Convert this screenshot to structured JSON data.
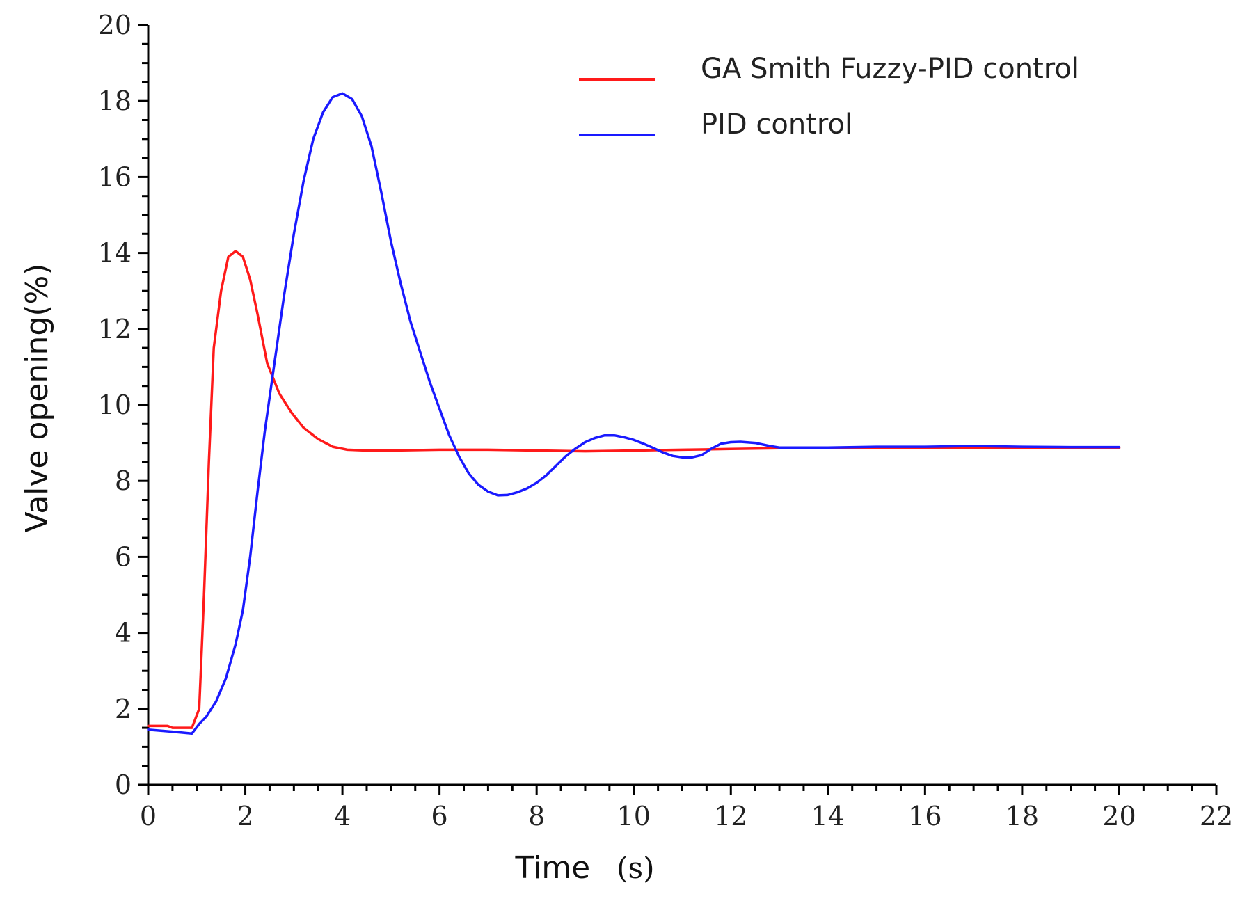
{
  "chart_data": {
    "type": "line",
    "title": "",
    "xlabel": "Time",
    "xlabel_unit": "(s)",
    "ylabel": "Valve opening(%)",
    "xlim": [
      0,
      22
    ],
    "ylim": [
      0,
      20
    ],
    "x_ticks": [
      0,
      2,
      4,
      6,
      8,
      10,
      12,
      14,
      16,
      18,
      20,
      22
    ],
    "y_ticks": [
      0,
      2,
      4,
      6,
      8,
      10,
      12,
      14,
      16,
      18,
      20
    ],
    "x_minor_step": 0.5,
    "y_minor_step": 0.5,
    "grid": false,
    "legend_position": "top-right",
    "series": [
      {
        "name": "GA Smith Fuzzy-PID control",
        "color": "#ff1a1a",
        "points": [
          [
            0,
            1.55
          ],
          [
            0.4,
            1.55
          ],
          [
            0.5,
            1.5
          ],
          [
            0.9,
            1.5
          ],
          [
            1.05,
            2.0
          ],
          [
            1.15,
            5.0
          ],
          [
            1.25,
            8.5
          ],
          [
            1.35,
            11.5
          ],
          [
            1.5,
            13.0
          ],
          [
            1.65,
            13.9
          ],
          [
            1.8,
            14.05
          ],
          [
            1.95,
            13.9
          ],
          [
            2.1,
            13.3
          ],
          [
            2.25,
            12.4
          ],
          [
            2.45,
            11.1
          ],
          [
            2.7,
            10.3
          ],
          [
            2.95,
            9.8
          ],
          [
            3.2,
            9.4
          ],
          [
            3.5,
            9.1
          ],
          [
            3.8,
            8.9
          ],
          [
            4.1,
            8.82
          ],
          [
            4.5,
            8.8
          ],
          [
            5.0,
            8.8
          ],
          [
            6.0,
            8.82
          ],
          [
            7.0,
            8.82
          ],
          [
            8.0,
            8.8
          ],
          [
            9.0,
            8.78
          ],
          [
            10.0,
            8.8
          ],
          [
            11.0,
            8.82
          ],
          [
            12.0,
            8.84
          ],
          [
            13.0,
            8.86
          ],
          [
            14.0,
            8.87
          ],
          [
            15.0,
            8.88
          ],
          [
            16.0,
            8.88
          ],
          [
            17.0,
            8.88
          ],
          [
            18.0,
            8.88
          ],
          [
            19.0,
            8.87
          ],
          [
            20.0,
            8.87
          ]
        ]
      },
      {
        "name": "PID control",
        "color": "#1a1aff",
        "points": [
          [
            0,
            1.45
          ],
          [
            0.5,
            1.4
          ],
          [
            0.9,
            1.35
          ],
          [
            1.05,
            1.6
          ],
          [
            1.2,
            1.8
          ],
          [
            1.4,
            2.2
          ],
          [
            1.6,
            2.8
          ],
          [
            1.8,
            3.7
          ],
          [
            1.95,
            4.6
          ],
          [
            2.1,
            6.0
          ],
          [
            2.25,
            7.7
          ],
          [
            2.4,
            9.3
          ],
          [
            2.6,
            11.1
          ],
          [
            2.8,
            12.9
          ],
          [
            3.0,
            14.5
          ],
          [
            3.2,
            15.9
          ],
          [
            3.4,
            17.0
          ],
          [
            3.6,
            17.7
          ],
          [
            3.8,
            18.1
          ],
          [
            4.0,
            18.2
          ],
          [
            4.2,
            18.05
          ],
          [
            4.4,
            17.6
          ],
          [
            4.6,
            16.8
          ],
          [
            4.8,
            15.6
          ],
          [
            5.0,
            14.3
          ],
          [
            5.2,
            13.2
          ],
          [
            5.4,
            12.2
          ],
          [
            5.6,
            11.4
          ],
          [
            5.8,
            10.6
          ],
          [
            6.0,
            9.9
          ],
          [
            6.2,
            9.2
          ],
          [
            6.4,
            8.65
          ],
          [
            6.6,
            8.2
          ],
          [
            6.8,
            7.9
          ],
          [
            7.0,
            7.72
          ],
          [
            7.2,
            7.62
          ],
          [
            7.4,
            7.63
          ],
          [
            7.6,
            7.7
          ],
          [
            7.8,
            7.8
          ],
          [
            8.0,
            7.95
          ],
          [
            8.2,
            8.15
          ],
          [
            8.4,
            8.4
          ],
          [
            8.6,
            8.65
          ],
          [
            8.8,
            8.85
          ],
          [
            9.0,
            9.02
          ],
          [
            9.2,
            9.13
          ],
          [
            9.4,
            9.2
          ],
          [
            9.6,
            9.2
          ],
          [
            9.8,
            9.15
          ],
          [
            10.0,
            9.08
          ],
          [
            10.2,
            8.98
          ],
          [
            10.4,
            8.87
          ],
          [
            10.6,
            8.75
          ],
          [
            10.8,
            8.66
          ],
          [
            11.0,
            8.62
          ],
          [
            11.2,
            8.62
          ],
          [
            11.4,
            8.68
          ],
          [
            11.6,
            8.85
          ],
          [
            11.8,
            8.98
          ],
          [
            12.0,
            9.02
          ],
          [
            12.2,
            9.03
          ],
          [
            12.5,
            9.0
          ],
          [
            12.8,
            8.92
          ],
          [
            13.0,
            8.88
          ],
          [
            14.0,
            8.88
          ],
          [
            15.0,
            8.9
          ],
          [
            16.0,
            8.9
          ],
          [
            17.0,
            8.92
          ],
          [
            18.0,
            8.9
          ],
          [
            19.0,
            8.89
          ],
          [
            20.0,
            8.89
          ]
        ]
      }
    ]
  }
}
